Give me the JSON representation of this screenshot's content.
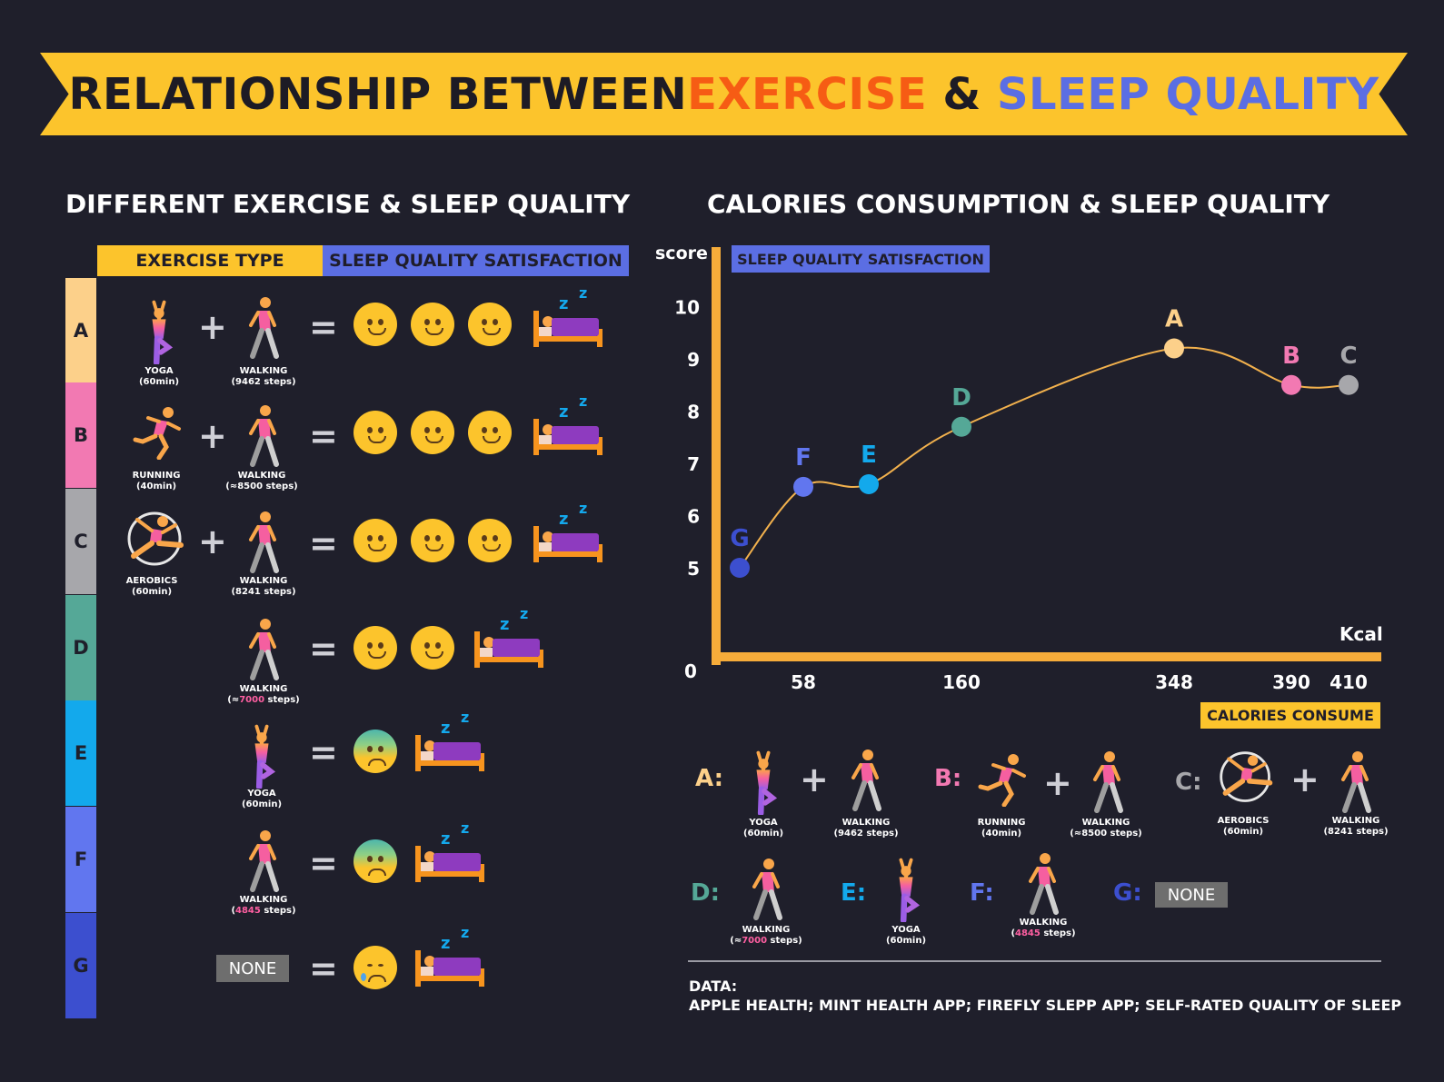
{
  "title": {
    "part1": "RELATIONSHIP BETWEEN ",
    "part2": "EXERCISE",
    "part3": " & ",
    "part4": "SLEEP QUALITY"
  },
  "colors": {
    "yellow": "#fcc42c",
    "orange": "#f65c14",
    "blue": "#5b6ee3",
    "background": "#1f1f2b"
  },
  "left": {
    "title": "DIFFERENT EXERCISE & SLEEP QUALITY",
    "header_exercise": "EXERCISE TYPE",
    "header_sleep": "SLEEP QUALITY SATISFACTION",
    "rows": [
      {
        "label": "A",
        "color": "#fcd08a"
      },
      {
        "label": "B",
        "color": "#f279b2"
      },
      {
        "label": "C",
        "color": "#a7a7ab"
      },
      {
        "label": "D",
        "color": "#55a897"
      },
      {
        "label": "E",
        "color": "#13a9ec"
      },
      {
        "label": "F",
        "color": "#6176ef"
      },
      {
        "label": "G",
        "color": "#3c4fcf"
      }
    ],
    "captions": {
      "yoga": "YOGA",
      "yoga_dur": "(60min)",
      "walking": "WALKING",
      "walk_a": "(9462 steps)",
      "walk_b": "(≈8500 steps)",
      "walk_c": "(8241 steps)",
      "walk_d_pre": "(≈",
      "walk_d_num": "7000",
      "walk_d_post": " steps)",
      "walk_f_pre": "(",
      "walk_f_num": "4845",
      "walk_f_post": " steps)",
      "running": "RUNNING",
      "running_dur": "(40min)",
      "aerobics": "AEROBICS",
      "aerobics_dur": "(60min)",
      "none": "NONE"
    },
    "plus": "+",
    "equals": "="
  },
  "right": {
    "title": "CALORIES CONSUMPTION & SLEEP QUALITY",
    "score_label": "score",
    "y_box": "SLEEP QUALITY SATISFACTION",
    "x_unit": "Kcal",
    "x_box": "CALORIES CONSUME",
    "zero": "0"
  },
  "chart_data": {
    "type": "line",
    "ylabel": "score",
    "xlabel": "Kcal",
    "y_ticks": [
      5,
      6,
      7,
      8,
      9,
      10
    ],
    "x_ticks": [
      58,
      160,
      348,
      390,
      410
    ],
    "points": [
      {
        "label": "G",
        "score": 5.0,
        "color": "#3c4fcf"
      },
      {
        "label": "F",
        "score": 6.55,
        "color": "#6176ef"
      },
      {
        "label": "E",
        "score": 6.6,
        "color": "#13a9ec"
      },
      {
        "label": "D",
        "score": 7.7,
        "color": "#55a897"
      },
      {
        "label": "A",
        "score": 9.2,
        "color": "#fcd08a"
      },
      {
        "label": "B",
        "score": 8.5,
        "color": "#f279b2"
      },
      {
        "label": "C",
        "score": 8.5,
        "color": "#a7a7ab"
      }
    ],
    "line_color": "#f2b14d"
  },
  "legend": {
    "A": "A:",
    "B": "B:",
    "C": "C:",
    "D": "D:",
    "E": "E:",
    "F": "F:",
    "G": "G:",
    "none": "NONE"
  },
  "footer": {
    "line1": "DATA:",
    "line2": "APPLE HEALTH; MINT HEALTH APP; FIREFLY SLEPP APP; SELF-RATED QUALITY OF SLEEP"
  }
}
